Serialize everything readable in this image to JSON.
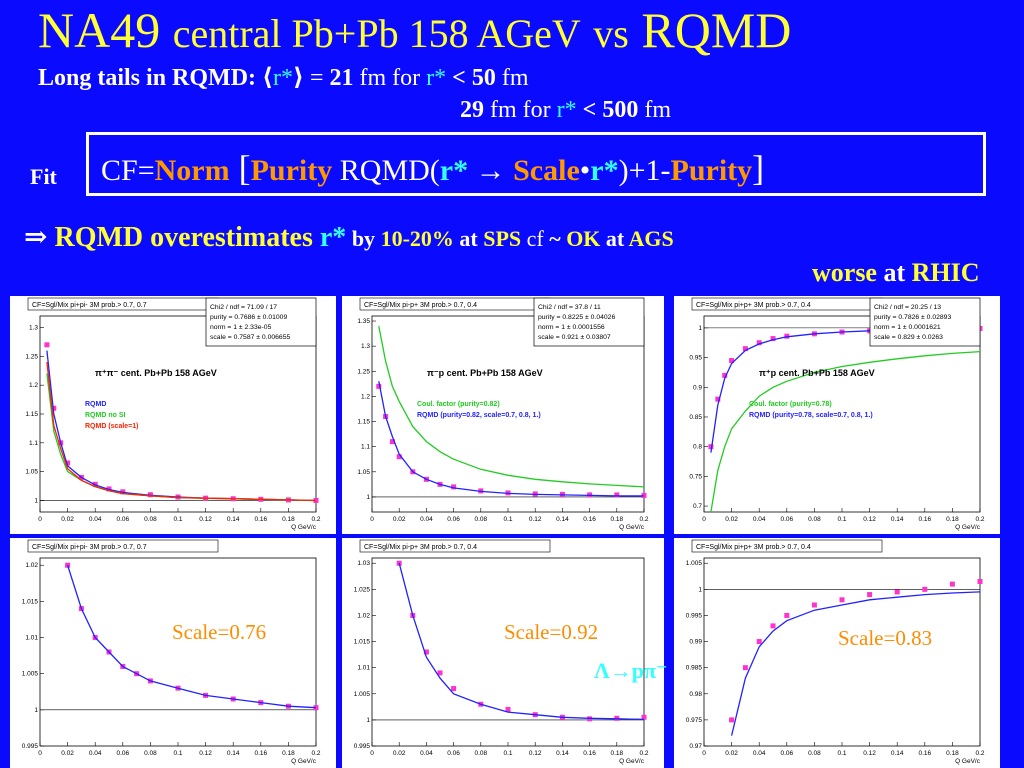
{
  "slide": {
    "title_main": "NA49",
    "title_mid": "central Pb+Pb 158 AGeV",
    "title_vs": "vs",
    "title_end": "RQMD",
    "line2_lead": "Long  tails in RQMD: ",
    "line2_bracket_open": "⟨",
    "line2_rstar": "r*",
    "line2_bracket_close": "⟩",
    "line2_eq": " = ",
    "line2_val": "21",
    "line2_unit": " fm  for ",
    "line2_cond_r": "r*",
    "line2_lt": " < ",
    "line2_cond_val": "50",
    "line2_cond_unit": " fm",
    "line3_val": "29",
    "line3_unit": " fm  for ",
    "line3_cond_r": "r*",
    "line3_lt": " < ",
    "line3_cond_val": "500",
    "line3_cond_unit": " fm",
    "fit_label": "Fit",
    "fit_cf": "CF=",
    "fit_norm": "Norm",
    "fit_open": " [",
    "fit_purity1": "Purity",
    "fit_rqmd": " RQMD(",
    "fit_r1": "r*",
    "fit_arrow": " → ",
    "fit_scale": "Scale",
    "fit_dot": "•",
    "fit_r2": "r*",
    "fit_plus": ")+1-",
    "fit_purity2": "Purity",
    "fit_close": "]",
    "concl_arrow": "⇒ ",
    "concl_text": "RQMD overestimates ",
    "concl_r": "r*",
    "concl_by": " by ",
    "concl_pct": "10-20%",
    "concl_at": " at ",
    "concl_sps": "SPS",
    "concl_cf": "  cf  ",
    "concl_tilde": "~ ",
    "concl_ok": "OK",
    "concl_at2": " at ",
    "concl_ags": "AGS",
    "concl2_worse": "worse",
    "concl2_at": " at ",
    "concl2_rhic": "RHIC",
    "lambda_label": "Λ→pπ⁻"
  },
  "panels": [
    {
      "id": "pipi-top",
      "header": "CF=Sgl/Mix  pi+pi- 3M prob.> 0.7, 0.7",
      "stats": [
        "Chi2 / ndf = 71.09 / 17",
        "purity  = 0.7686 ± 0.01009",
        "norm    =   1 ± 2.33e-05",
        "scale   = 0.7587 ± 0.006655"
      ],
      "label": "π⁺π⁻  cent. Pb+Pb  158 AGeV",
      "legend": [
        {
          "text": "RQMD",
          "color": "#2222ff"
        },
        {
          "text": "RQMD no SI",
          "color": "#22cc22"
        },
        {
          "text": "RQMD (scale=1)",
          "color": "#ff2200"
        }
      ],
      "xlabel": "Q  GeV/c",
      "xticks": [
        "0",
        "0.02",
        "0.04",
        "0.06",
        "0.08",
        "0.1",
        "0.12",
        "0.14",
        "0.16",
        "0.18",
        "0.2"
      ],
      "yticks": [
        "1",
        "1.05",
        "1.1",
        "1.15",
        "1.2",
        "1.25",
        "1.3"
      ],
      "ylim": [
        0.98,
        1.32
      ]
    },
    {
      "id": "pip-top",
      "header": "CF=Sgl/Mix  pi-p+ 3M prob.> 0.7, 0.4",
      "stats": [
        "Chi2 / ndf =  37.8 / 11",
        "purity  = 0.8225 ± 0.04026",
        "norm    =   1 ± 0.0001556",
        "scale   = 0.921 ± 0.03807"
      ],
      "label": "π⁻p   cent. Pb+Pb  158 AGeV",
      "legend": [
        {
          "text": "Coul. factor (purity=0.82)",
          "color": "#22cc22"
        },
        {
          "text": "RQMD (purity=0.82, scale=0.7, 0.8, 1.)",
          "color": "#2222ff"
        }
      ],
      "xlabel": "Q  GeV/c",
      "xticks": [
        "0",
        "0.02",
        "0.04",
        "0.06",
        "0.08",
        "0.1",
        "0.12",
        "0.14",
        "0.16",
        "0.18",
        "0.2"
      ],
      "yticks": [
        "1",
        "1.05",
        "1.1",
        "1.15",
        "1.2",
        "1.25",
        "1.3",
        "1.35"
      ],
      "ylim": [
        0.97,
        1.36
      ]
    },
    {
      "id": "pipp-top",
      "header": "CF=Sgl/Mix  pi+p+ 3M prob.> 0.7, 0.4",
      "stats": [
        "Chi2 / ndf = 20.25 / 13",
        "purity  = 0.7826 ± 0.02893",
        "norm    =   1 ± 0.0001621",
        "scale   = 0.829 ± 0.0263"
      ],
      "label": "π⁺p   cent. Pb+Pb  158 AGeV",
      "legend": [
        {
          "text": "Coul. factor (purity=0.78)",
          "color": "#22cc22"
        },
        {
          "text": "RQMD (purity=0.78, scale=0.7, 0.8, 1.)",
          "color": "#2222ff"
        }
      ],
      "xlabel": "Q  GeV/c",
      "xticks": [
        "0",
        "0.02",
        "0.04",
        "0.06",
        "0.08",
        "0.1",
        "0.12",
        "0.14",
        "0.16",
        "0.18",
        "0.2"
      ],
      "yticks": [
        "0.7",
        "0.75",
        "0.8",
        "0.85",
        "0.9",
        "0.95",
        "1"
      ],
      "ylim": [
        0.69,
        1.02
      ]
    },
    {
      "id": "pipi-bot",
      "header": "CF=Sgl/Mix  pi+pi- 3M prob.> 0.7, 0.7",
      "scale_label": "Scale=0.76",
      "xlabel": "Q  GeV/c",
      "xticks": [
        "0",
        "0.02",
        "0.04",
        "0.06",
        "0.08",
        "0.1",
        "0.12",
        "0.14",
        "0.16",
        "0.18",
        "0.2"
      ],
      "yticks": [
        "0.995",
        "1",
        "1.005",
        "1.01",
        "1.015",
        "1.02"
      ],
      "ylim": [
        0.995,
        1.021
      ]
    },
    {
      "id": "pip-bot",
      "header": "CF=Sgl/Mix  pi-p+ 3M prob.> 0.7, 0.4",
      "scale_label": "Scale=0.92",
      "xlabel": "Q  GeV/c",
      "xticks": [
        "0",
        "0.02",
        "0.04",
        "0.06",
        "0.08",
        "0.1",
        "0.12",
        "0.14",
        "0.16",
        "0.18",
        "0.2"
      ],
      "yticks": [
        "0.995",
        "1",
        "1.005",
        "1.01",
        "1.015",
        "1.02",
        "1.025",
        "1.03"
      ],
      "ylim": [
        0.995,
        1.031
      ]
    },
    {
      "id": "pipp-bot",
      "header": "CF=Sgl/Mix  pi+p+ 3M prob.> 0.7, 0.4",
      "scale_label": "Scale=0.83",
      "xlabel": "Q  GeV/c",
      "xticks": [
        "0",
        "0.02",
        "0.04",
        "0.06",
        "0.08",
        "0.1",
        "0.12",
        "0.14",
        "0.16",
        "0.18",
        "0.2"
      ],
      "yticks": [
        "0.97",
        "0.975",
        "0.98",
        "0.985",
        "0.99",
        "0.995",
        "1",
        "1.005"
      ],
      "ylim": [
        0.97,
        1.006
      ]
    }
  ],
  "chart_data": [
    {
      "type": "line",
      "x": [
        0.005,
        0.01,
        0.015,
        0.02,
        0.03,
        0.04,
        0.05,
        0.06,
        0.08,
        0.1,
        0.12,
        0.14,
        0.16,
        0.18,
        0.2
      ],
      "series": [
        {
          "name": "data",
          "values": [
            1.27,
            1.16,
            1.1,
            1.065,
            1.04,
            1.028,
            1.02,
            1.015,
            1.01,
            1.006,
            1.004,
            1.003,
            1.002,
            1.001,
            1.0
          ]
        },
        {
          "name": "RQMD",
          "values": [
            1.26,
            1.15,
            1.1,
            1.06,
            1.04,
            1.027,
            1.019,
            1.014,
            1.009,
            1.006,
            1.004,
            1.003,
            1.002,
            1.001,
            1.0
          ]
        },
        {
          "name": "RQMD no SI",
          "values": [
            1.22,
            1.12,
            1.08,
            1.05,
            1.035,
            1.024,
            1.017,
            1.012,
            1.008,
            1.005,
            1.004,
            1.003,
            1.002,
            1.001,
            1.0
          ]
        },
        {
          "name": "RQMD (scale=1)",
          "values": [
            1.24,
            1.13,
            1.09,
            1.055,
            1.035,
            1.024,
            1.017,
            1.012,
            1.008,
            1.005,
            1.004,
            1.003,
            1.002,
            1.001,
            1.0
          ]
        }
      ],
      "xlabel": "Q  GeV/c",
      "xlim": [
        0,
        0.2
      ],
      "ylim": [
        0.98,
        1.32
      ]
    },
    {
      "type": "line",
      "x": [
        0.005,
        0.01,
        0.015,
        0.02,
        0.03,
        0.04,
        0.05,
        0.06,
        0.08,
        0.1,
        0.12,
        0.14,
        0.16,
        0.18,
        0.2
      ],
      "series": [
        {
          "name": "data",
          "values": [
            1.22,
            1.16,
            1.11,
            1.08,
            1.05,
            1.035,
            1.025,
            1.02,
            1.012,
            1.008,
            1.006,
            1.005,
            1.004,
            1.004,
            1.003
          ]
        },
        {
          "name": "Coul. factor (purity=0.82)",
          "values": [
            1.34,
            1.27,
            1.22,
            1.19,
            1.14,
            1.11,
            1.09,
            1.075,
            1.055,
            1.043,
            1.035,
            1.03,
            1.026,
            1.023,
            1.02
          ]
        },
        {
          "name": "RQMD (purity=0.82, scale=0.7, 0.8, 1.)",
          "values": [
            1.23,
            1.16,
            1.12,
            1.085,
            1.05,
            1.035,
            1.025,
            1.018,
            1.011,
            1.007,
            1.005,
            1.004,
            1.003,
            1.002,
            1.002
          ]
        }
      ],
      "xlabel": "Q  GeV/c",
      "xlim": [
        0,
        0.2
      ],
      "ylim": [
        0.97,
        1.36
      ]
    },
    {
      "type": "line",
      "x": [
        0.005,
        0.01,
        0.015,
        0.02,
        0.03,
        0.04,
        0.05,
        0.06,
        0.08,
        0.1,
        0.12,
        0.14,
        0.16,
        0.18,
        0.2
      ],
      "series": [
        {
          "name": "data",
          "values": [
            0.8,
            0.88,
            0.92,
            0.945,
            0.965,
            0.975,
            0.982,
            0.986,
            0.99,
            0.993,
            0.995,
            0.996,
            0.997,
            0.998,
            0.999
          ]
        },
        {
          "name": "Coul. factor (purity=0.78)",
          "values": [
            0.69,
            0.76,
            0.8,
            0.83,
            0.86,
            0.885,
            0.9,
            0.91,
            0.925,
            0.935,
            0.942,
            0.948,
            0.953,
            0.957,
            0.96
          ]
        },
        {
          "name": "RQMD (purity=0.78, scale=0.7, 0.8, 1.)",
          "values": [
            0.79,
            0.87,
            0.915,
            0.94,
            0.962,
            0.973,
            0.98,
            0.985,
            0.99,
            0.993,
            0.995,
            0.996,
            0.997,
            0.998,
            0.999
          ]
        }
      ],
      "xlabel": "Q  GeV/c",
      "xlim": [
        0,
        0.2
      ],
      "ylim": [
        0.69,
        1.02
      ]
    },
    {
      "type": "line",
      "x": [
        0.02,
        0.03,
        0.04,
        0.05,
        0.06,
        0.07,
        0.08,
        0.1,
        0.12,
        0.14,
        0.16,
        0.18,
        0.2
      ],
      "series": [
        {
          "name": "data",
          "values": [
            1.02,
            1.014,
            1.01,
            1.008,
            1.006,
            1.005,
            1.004,
            1.003,
            1.002,
            1.0015,
            1.001,
            1.0005,
            1.0003
          ]
        },
        {
          "name": "RQMD",
          "values": [
            1.02,
            1.014,
            1.01,
            1.008,
            1.006,
            1.005,
            1.004,
            1.003,
            1.002,
            1.0015,
            1.001,
            1.0005,
            1.0003
          ]
        }
      ],
      "xlabel": "Q  GeV/c",
      "xlim": [
        0,
        0.2
      ],
      "ylim": [
        0.995,
        1.021
      ]
    },
    {
      "type": "line",
      "x": [
        0.02,
        0.03,
        0.04,
        0.05,
        0.06,
        0.08,
        0.1,
        0.12,
        0.14,
        0.16,
        0.18,
        0.2
      ],
      "series": [
        {
          "name": "data",
          "values": [
            1.03,
            1.02,
            1.013,
            1.009,
            1.006,
            1.003,
            1.002,
            1.001,
            1.0005,
            1.0002,
            1.0003,
            1.0005
          ]
        },
        {
          "name": "RQMD",
          "values": [
            1.03,
            1.02,
            1.012,
            1.008,
            1.005,
            1.003,
            1.0015,
            1.001,
            1.0005,
            1.0003,
            1.0002,
            1.0001
          ]
        }
      ],
      "xlabel": "Q  GeV/c",
      "xlim": [
        0,
        0.2
      ],
      "ylim": [
        0.995,
        1.031
      ]
    },
    {
      "type": "line",
      "x": [
        0.02,
        0.03,
        0.04,
        0.05,
        0.06,
        0.08,
        0.1,
        0.12,
        0.14,
        0.16,
        0.18,
        0.2
      ],
      "series": [
        {
          "name": "data",
          "values": [
            0.975,
            0.985,
            0.99,
            0.993,
            0.995,
            0.997,
            0.998,
            0.999,
            0.9995,
            1.0,
            1.001,
            1.0015
          ]
        },
        {
          "name": "RQMD",
          "values": [
            0.972,
            0.983,
            0.989,
            0.992,
            0.994,
            0.996,
            0.997,
            0.998,
            0.9985,
            0.999,
            0.9993,
            0.9995
          ]
        }
      ],
      "xlabel": "Q  GeV/c",
      "xlim": [
        0,
        0.2
      ],
      "ylim": [
        0.97,
        1.006
      ]
    }
  ]
}
